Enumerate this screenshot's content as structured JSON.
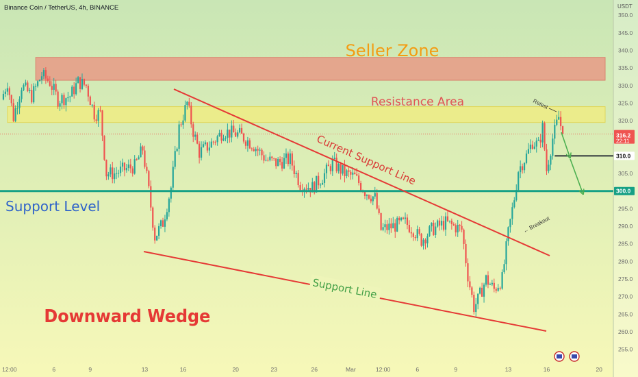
{
  "header": {
    "symbol_line": "Binance Coin / TetherUS, 4h, BINANCE"
  },
  "colors": {
    "bg_top": "#c9e6b5",
    "bg_bottom": "#f7f8b8",
    "up": "#26a69a",
    "down": "#ef5350",
    "seller_zone": "#e89a86",
    "resistance": "#f2ec7c",
    "support_level": "#16a085",
    "trend": "#e53935",
    "current_price": "#ef5350",
    "target_line": "#2d3439",
    "arrow": "#4caf50"
  },
  "chart_data": {
    "type": "candlestick",
    "symbol": "Binance Coin / TetherUS",
    "interval": "4h",
    "exchange": "BINANCE",
    "quote_unit": "USDT",
    "ylim": [
      252,
      351
    ],
    "y_ticks": [
      255,
      260,
      265,
      270,
      275,
      280,
      285,
      290,
      295,
      300,
      305,
      310,
      315,
      320,
      325,
      330,
      335,
      340,
      345,
      350
    ],
    "y_tick_labels": [
      "255.0",
      "260.0",
      "265.0",
      "270.0",
      "275.0",
      "280.0",
      "285.0",
      "290.0",
      "295.0",
      "300.0",
      "305.0",
      "310.0",
      "315.0",
      "320.0",
      "325.0",
      "330.0",
      "335.0",
      "340.0",
      "345.0",
      "350.0"
    ],
    "x_tick_labels": [
      "12:00",
      "6",
      "9",
      "13",
      "16",
      "20",
      "23",
      "26",
      "Mar",
      "12:00",
      "6",
      "9",
      "13",
      "16",
      "20"
    ],
    "x_tick_index": [
      4,
      26,
      44,
      71,
      90,
      116,
      135,
      155,
      173,
      189,
      206,
      225,
      251,
      270,
      296
    ],
    "bar_count": 300,
    "close_path": [
      [
        0,
        326
      ],
      [
        3,
        331
      ],
      [
        6,
        321
      ],
      [
        10,
        330
      ],
      [
        15,
        327
      ],
      [
        20,
        333
      ],
      [
        24,
        331
      ],
      [
        28,
        326
      ],
      [
        34,
        327
      ],
      [
        38,
        331
      ],
      [
        42,
        330
      ],
      [
        46,
        322
      ],
      [
        49,
        322
      ],
      [
        52,
        305
      ],
      [
        56,
        305
      ],
      [
        60,
        306
      ],
      [
        66,
        307
      ],
      [
        70,
        312
      ],
      [
        73,
        300
      ],
      [
        76,
        287
      ],
      [
        80,
        291
      ],
      [
        84,
        301
      ],
      [
        88,
        318
      ],
      [
        92,
        325
      ],
      [
        95,
        317
      ],
      [
        98,
        311
      ],
      [
        103,
        313
      ],
      [
        110,
        317
      ],
      [
        118,
        316
      ],
      [
        125,
        313
      ],
      [
        131,
        309
      ],
      [
        136,
        308
      ],
      [
        143,
        309
      ],
      [
        148,
        302
      ],
      [
        154,
        301
      ],
      [
        159,
        304
      ],
      [
        164,
        308
      ],
      [
        170,
        305
      ],
      [
        175,
        304
      ],
      [
        180,
        300
      ],
      [
        185,
        298
      ],
      [
        188,
        289
      ],
      [
        194,
        290
      ],
      [
        200,
        291
      ],
      [
        204,
        289
      ],
      [
        208,
        286
      ],
      [
        213,
        289
      ],
      [
        220,
        291
      ],
      [
        224,
        290
      ],
      [
        228,
        289
      ],
      [
        231,
        276
      ],
      [
        234,
        267
      ],
      [
        236,
        269
      ],
      [
        240,
        275
      ],
      [
        244,
        272
      ],
      [
        248,
        275
      ],
      [
        251,
        288
      ],
      [
        254,
        298
      ],
      [
        256,
        306
      ],
      [
        260,
        310
      ],
      [
        263,
        314
      ],
      [
        266,
        313
      ],
      [
        268,
        318
      ],
      [
        270,
        306
      ],
      [
        273,
        315
      ],
      [
        276,
        321
      ],
      [
        278,
        316.2
      ]
    ],
    "last_price": "316.2",
    "countdown": "22:11",
    "levels": [
      {
        "name": "Seller Zone",
        "from": 331.5,
        "to": 338
      },
      {
        "name": "Resistance Area",
        "from": 319.5,
        "to": 324
      },
      {
        "name": "Support Level",
        "value": 300
      },
      {
        "name": "target",
        "value": 310
      }
    ],
    "price_labels": {
      "target": "310.0",
      "support": "300.0"
    },
    "annotations": {
      "seller_zone": "Seller Zone",
      "resistance_area": "Resistance Area",
      "current_support_line": "Current Support Line",
      "support_level": "Support Level",
      "support_line": "Support Line",
      "pattern": "Downward Wedge",
      "retest": "Retest",
      "breakout": "Breakout"
    }
  }
}
